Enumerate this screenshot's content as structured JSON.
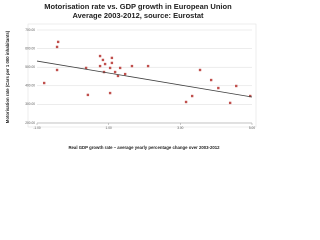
{
  "chart_data": {
    "type": "scatter",
    "title": "Motorisation rate vs. GDP growth in European Union",
    "subtitle": "Average 2003-2012, source: Eurostat",
    "x_label": "Real GDP growth rate – average yearly percentage change over 2003-2012",
    "y_label": "Motorisation rate (Cars per 1 000 inhabitants)",
    "xlim": [
      -1,
      5
    ],
    "ylim": [
      200,
      700
    ],
    "xticks": [
      {
        "value": -1,
        "label": "-1.00"
      },
      {
        "value": 1,
        "label": "1.00"
      },
      {
        "value": 3,
        "label": "3.00"
      },
      {
        "value": 5,
        "label": "5.00"
      }
    ],
    "yticks": [
      {
        "value": 200,
        "label": "200.00"
      },
      {
        "value": 300,
        "label": "300.00"
      },
      {
        "value": 400,
        "label": "400.00"
      },
      {
        "value": 500,
        "label": "500.00"
      },
      {
        "value": 600,
        "label": "600.00"
      },
      {
        "value": 700,
        "label": "700.00"
      }
    ],
    "grid": true,
    "series": [
      {
        "color": "#c0504d",
        "x": [
          -0.41,
          -0.44,
          -0.8,
          -0.44,
          0.37,
          0.76,
          0.84,
          0.9,
          1.09,
          1.09,
          1.04,
          1.18,
          1.32,
          1.26,
          0.76,
          0.87,
          1.46,
          1.65,
          2.1,
          0.42,
          1.04,
          3.55,
          3.33,
          3.86,
          4.06,
          4.56,
          4.39,
          4.95,
          3.16
        ],
        "values": [
          636,
          609,
          415,
          485,
          496,
          560,
          539,
          517,
          550,
          523,
          496,
          474,
          496,
          453,
          506,
          474,
          463,
          506,
          506,
          351,
          361,
          485,
          345,
          431,
          388,
          399,
          308,
          345,
          313
        ]
      }
    ],
    "trendline": {
      "color": "#404040",
      "x": [
        -1,
        5
      ],
      "values": [
        533,
        340
      ]
    }
  }
}
